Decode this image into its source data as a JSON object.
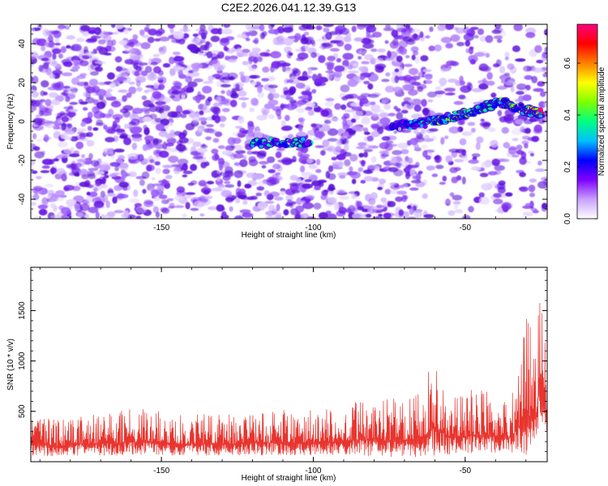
{
  "figure_title": "C2E2.2026.041.12.39.G13",
  "chart_data": [
    {
      "type": "heatmap",
      "title": "C2E2.2026.041.12.39.G13",
      "xlabel": "Height of straight line (km)",
      "ylabel": "Frequency (Hz)",
      "xlim": [
        -193,
        -23
      ],
      "ylim": [
        -50,
        50
      ],
      "x_ticks": [
        -150,
        -100,
        -50
      ],
      "x_tick_labels": [
        "-150",
        "-100",
        "-50"
      ],
      "y_ticks": [
        -40,
        -20,
        0,
        20,
        40
      ],
      "y_tick_labels": [
        "-40",
        "-20",
        "0",
        "20",
        "40"
      ],
      "colorbar": {
        "label": "Normalized spectral amplitude",
        "range": [
          0.0,
          0.75
        ],
        "ticks": [
          0.0,
          0.2,
          0.4,
          0.6
        ],
        "tick_labels": [
          "0.0",
          "0.2",
          "0.4",
          "0.6"
        ],
        "colors": [
          "#ffffff",
          "#c8a0ff",
          "#8000ff",
          "#0000ff",
          "#00c0ff",
          "#00ff80",
          "#80ff00",
          "#ffff00",
          "#ff8000",
          "#ff0000",
          "#ff0080"
        ]
      },
      "signal_track": {
        "description": "main spectral ridge",
        "points": [
          {
            "x": -120,
            "y": -11,
            "amp": 0.35
          },
          {
            "x": -101,
            "y": -11,
            "amp": 0.35
          },
          {
            "x": -74,
            "y": -3,
            "amp": 0.2
          },
          {
            "x": -60,
            "y": 0,
            "amp": 0.4
          },
          {
            "x": -50,
            "y": 4,
            "amp": 0.45
          },
          {
            "x": -38,
            "y": 10,
            "amp": 0.4
          },
          {
            "x": -30,
            "y": 6,
            "amp": 0.5
          },
          {
            "x": -25,
            "y": 4,
            "amp": 0.7
          }
        ]
      }
    },
    {
      "type": "line",
      "xlabel": "Height of straight line (km)",
      "ylabel": "SNR (10 * v/v)",
      "xlim": [
        -193,
        -23
      ],
      "ylim": [
        0,
        1930
      ],
      "x_ticks": [
        -150,
        -100,
        -50
      ],
      "x_tick_labels": [
        "-150",
        "-100",
        "-50"
      ],
      "y_ticks": [
        500,
        1000,
        1500
      ],
      "y_tick_labels": [
        "500",
        "1000",
        "1500"
      ],
      "series": [
        {
          "name": "SNR",
          "color": "#e8342e",
          "x": [
            -193,
            -185,
            -175,
            -165,
            -155,
            -145,
            -135,
            -125,
            -115,
            -105,
            -95,
            -85,
            -75,
            -65,
            -60,
            -55,
            -45,
            -35,
            -30,
            -27,
            -25,
            -23
          ],
          "upper": [
            450,
            420,
            480,
            500,
            550,
            460,
            500,
            480,
            520,
            510,
            540,
            620,
            620,
            680,
            1060,
            700,
            720,
            650,
            1450,
            1350,
            1930,
            800
          ],
          "lower": [
            60,
            50,
            60,
            60,
            70,
            60,
            60,
            60,
            60,
            60,
            60,
            60,
            50,
            40,
            60,
            70,
            90,
            80,
            40,
            60,
            400,
            300
          ]
        }
      ]
    }
  ]
}
